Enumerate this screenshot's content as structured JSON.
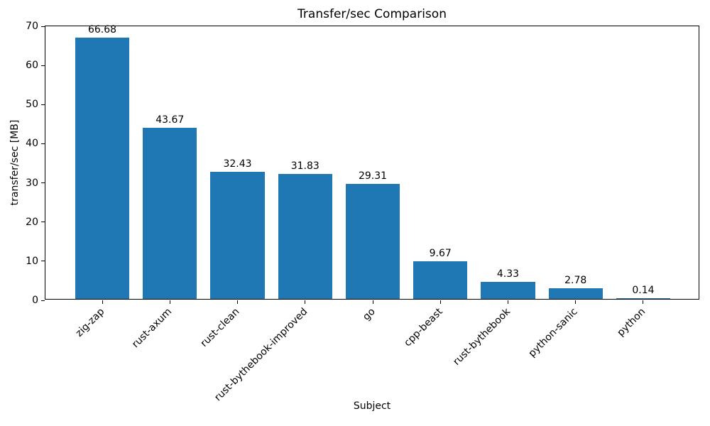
{
  "chart_data": {
    "type": "bar",
    "title": "Transfer/sec Comparison",
    "xlabel": "Subject",
    "ylabel": "transfer/sec [MB]",
    "categories": [
      "zig-zap",
      "rust-axum",
      "rust-clean",
      "rust-bythebook-improved",
      "go",
      "cpp-beast",
      "rust-bythebook",
      "python-sanic",
      "python"
    ],
    "values": [
      66.68,
      43.67,
      32.43,
      31.83,
      29.31,
      9.67,
      4.33,
      2.78,
      0.14
    ],
    "value_labels": [
      "66.68",
      "43.67",
      "32.43",
      "31.83",
      "29.31",
      "9.67",
      "4.33",
      "2.78",
      "0.14"
    ],
    "ylim": [
      0,
      70
    ],
    "yticks": [
      0,
      10,
      20,
      30,
      40,
      50,
      60,
      70
    ],
    "grid": false,
    "legend": null,
    "bar_color": "#1f77b4",
    "xtick_rotation": 45
  }
}
